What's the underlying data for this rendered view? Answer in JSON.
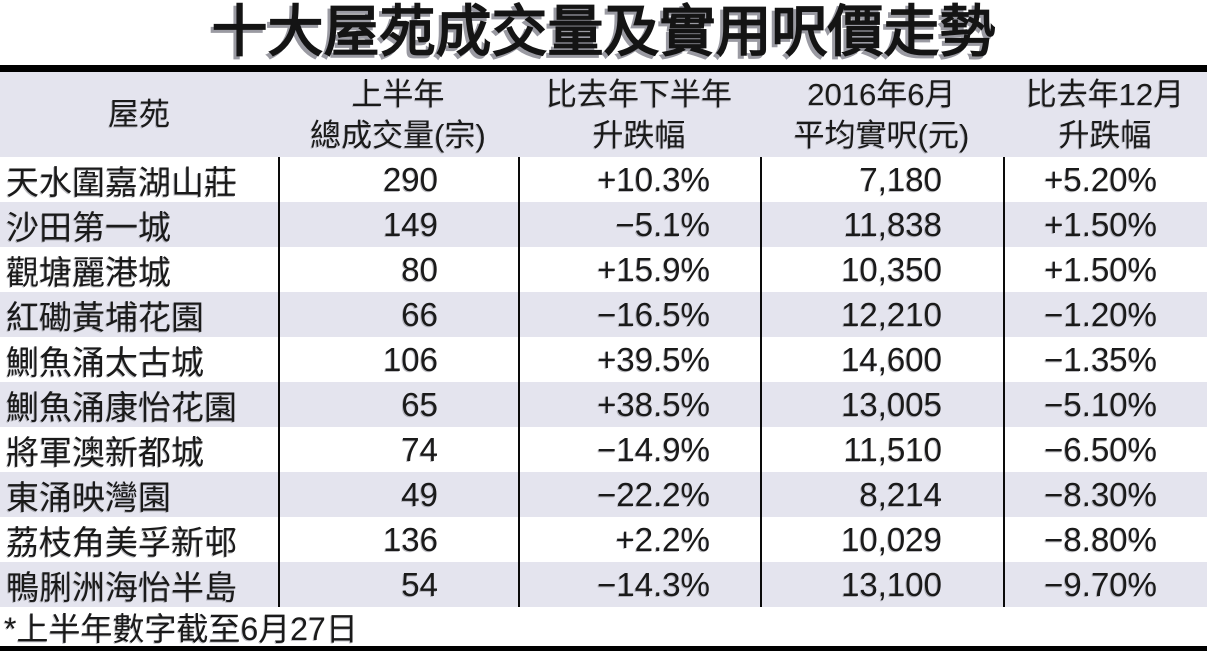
{
  "title": "十大屋苑成交量及實用呎價走勢",
  "footnote": "*上半年數字截至6月27日",
  "colors": {
    "row_alt_background": "#e4e4ee",
    "bar_black": "#000000",
    "text": "#1a1a1a"
  },
  "table": {
    "headers": [
      {
        "line1": "屋苑",
        "line2": ""
      },
      {
        "line1": "上半年",
        "line2": "總成交量(宗)"
      },
      {
        "line1": "比去年下半年",
        "line2": "升跌幅"
      },
      {
        "line1": "2016年6月",
        "line2": "平均實呎(元)"
      },
      {
        "line1": "比去年12月",
        "line2": "升跌幅"
      }
    ],
    "rows": [
      {
        "estate": "天水圍嘉湖山莊",
        "deals": "290",
        "change_h2": "+10.3%",
        "price": "7,180",
        "change_dec": "+5.20%"
      },
      {
        "estate": "沙田第一城",
        "deals": "149",
        "change_h2": "−5.1%",
        "price": "11,838",
        "change_dec": "+1.50%"
      },
      {
        "estate": "觀塘麗港城",
        "deals": "80",
        "change_h2": "+15.9%",
        "price": "10,350",
        "change_dec": "+1.50%"
      },
      {
        "estate": "紅磡黃埔花園",
        "deals": "66",
        "change_h2": "−16.5%",
        "price": "12,210",
        "change_dec": "−1.20%"
      },
      {
        "estate": "鰂魚涌太古城",
        "deals": "106",
        "change_h2": "+39.5%",
        "price": "14,600",
        "change_dec": "−1.35%"
      },
      {
        "estate": "鰂魚涌康怡花園",
        "deals": "65",
        "change_h2": "+38.5%",
        "price": "13,005",
        "change_dec": "−5.10%"
      },
      {
        "estate": "將軍澳新都城",
        "deals": "74",
        "change_h2": "−14.9%",
        "price": "11,510",
        "change_dec": "−6.50%"
      },
      {
        "estate": "東涌映灣園",
        "deals": "49",
        "change_h2": "−22.2%",
        "price": "8,214",
        "change_dec": "−8.30%"
      },
      {
        "estate": "荔枝角美孚新邨",
        "deals": "136",
        "change_h2": "+2.2%",
        "price": "10,029",
        "change_dec": "−8.80%"
      },
      {
        "estate": "鴨脷洲海怡半島",
        "deals": "54",
        "change_h2": "−14.3%",
        "price": "13,100",
        "change_dec": "−9.70%"
      }
    ]
  },
  "chart_data": {
    "type": "table",
    "title": "十大屋苑成交量及實用呎價走勢",
    "columns": [
      "屋苑",
      "上半年總成交量(宗)",
      "比去年下半年升跌幅",
      "2016年6月平均實呎(元)",
      "比去年12月升跌幅"
    ],
    "rows": [
      [
        "天水圍嘉湖山莊",
        290,
        "+10.3%",
        7180,
        "+5.20%"
      ],
      [
        "沙田第一城",
        149,
        "-5.1%",
        11838,
        "+1.50%"
      ],
      [
        "觀塘麗港城",
        80,
        "+15.9%",
        10350,
        "+1.50%"
      ],
      [
        "紅磡黃埔花園",
        66,
        "-16.5%",
        12210,
        "-1.20%"
      ],
      [
        "鰂魚涌太古城",
        106,
        "+39.5%",
        14600,
        "-1.35%"
      ],
      [
        "鰂魚涌康怡花園",
        65,
        "+38.5%",
        13005,
        "-5.10%"
      ],
      [
        "將軍澳新都城",
        74,
        "-14.9%",
        11510,
        "-6.50%"
      ],
      [
        "東涌映灣園",
        49,
        "-22.2%",
        8214,
        "-8.30%"
      ],
      [
        "荔枝角美孚新邨",
        136,
        "+2.2%",
        10029,
        "-8.80%"
      ],
      [
        "鴨脷洲海怡半島",
        54,
        "-14.3%",
        13100,
        "-9.70%"
      ]
    ],
    "footnote": "*上半年數字截至6月27日"
  }
}
